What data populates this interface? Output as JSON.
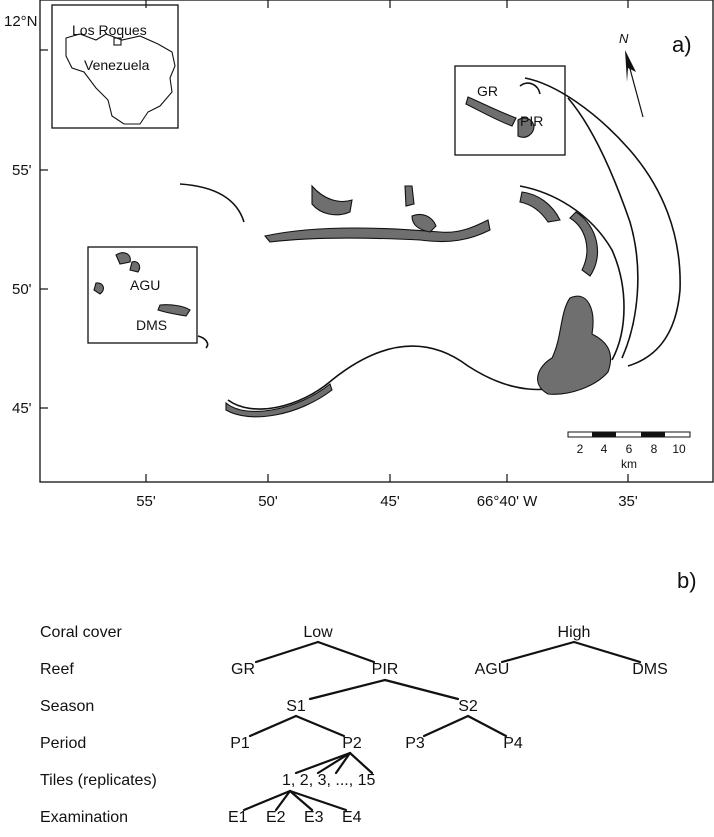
{
  "panel_a": {
    "label": "a)",
    "y_ticks": [
      "12°N",
      "55'",
      "50'",
      "45'"
    ],
    "x_ticks": [
      "55'",
      "50'",
      "45'",
      "66°40' W",
      "35'"
    ],
    "inset": {
      "los_roques": "Los Roques",
      "country": "Venezuela"
    },
    "sites": {
      "gr": "GR",
      "pir": "PIR",
      "agu": "AGU",
      "dms": "DMS"
    },
    "north": "N",
    "scale_ticks": [
      "2",
      "4",
      "6",
      "8",
      "10"
    ],
    "scale_unit": "km"
  },
  "panel_b": {
    "label": "b)",
    "rows": [
      "Coral cover",
      "Reef",
      "Season",
      "Period",
      "Tiles (replicates)",
      "Examination"
    ],
    "coral_cover": [
      "Low",
      "High"
    ],
    "reefs": [
      "GR",
      "PIR",
      "AGU",
      "DMS"
    ],
    "seasons": [
      "S1",
      "S2"
    ],
    "periods": [
      "P1",
      "P2",
      "P3",
      "P4"
    ],
    "tiles": "1, 2, 3, ..., 15",
    "examinations": [
      "E1",
      "E2",
      "E3",
      "E4"
    ]
  }
}
